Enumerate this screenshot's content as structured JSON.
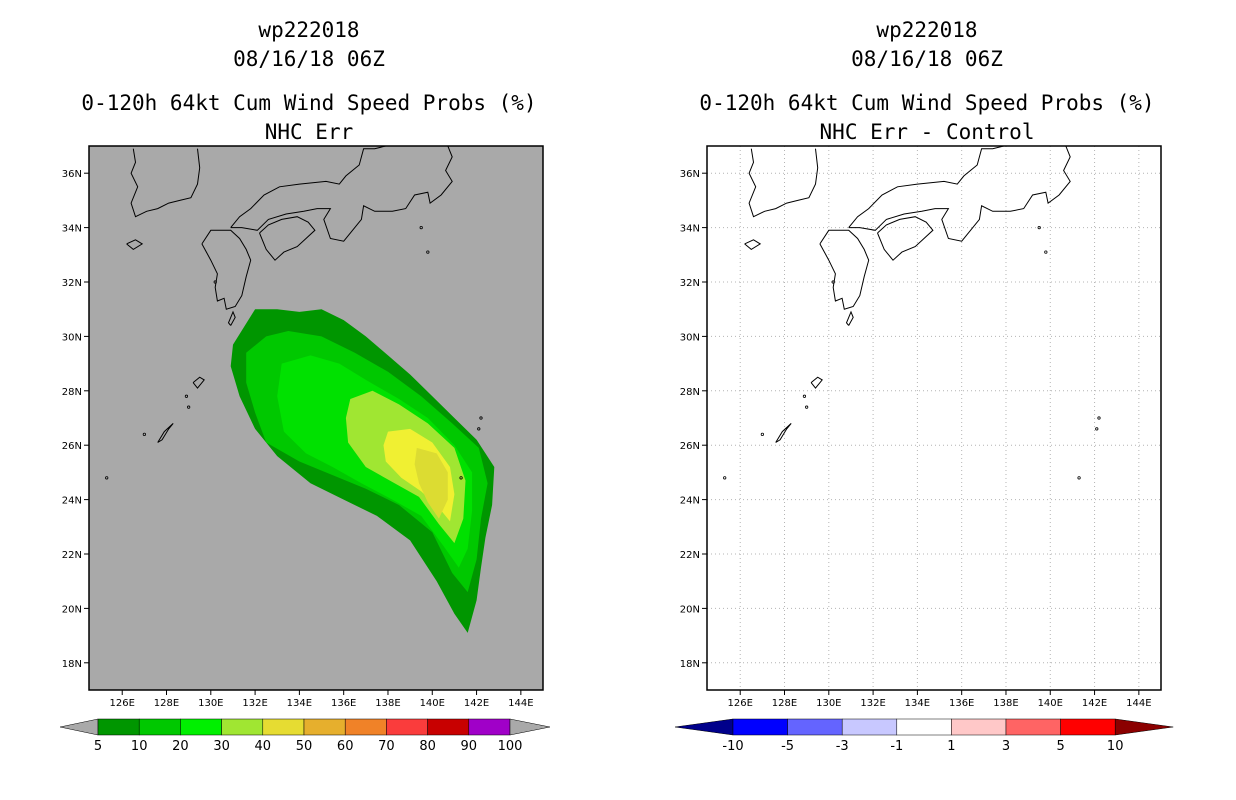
{
  "left_panel": {
    "title_storm": "wp222018",
    "title_date": "08/16/18 06Z",
    "title_product": "0-120h 64kt Cum Wind Speed Probs (%)",
    "title_subtitle": "NHC Err",
    "background_color": "#a9a9a9",
    "colorbar": {
      "labels": [
        "5",
        "10",
        "20",
        "30",
        "40",
        "50",
        "60",
        "70",
        "80",
        "90",
        "100"
      ],
      "colors": [
        "#009600",
        "#00c800",
        "#00f000",
        "#a0e632",
        "#e6dc32",
        "#e6af2d",
        "#f08228",
        "#fa3c3c",
        "#c80000",
        "#a000c8"
      ]
    }
  },
  "right_panel": {
    "title_storm": "wp222018",
    "title_date": "08/16/18 06Z",
    "title_product": "0-120h 64kt Cum Wind Speed Probs (%)",
    "title_subtitle": "NHC Err - Control",
    "background_color": "#ffffff",
    "colorbar": {
      "labels": [
        "-10",
        "-5",
        "-3",
        "-1",
        "1",
        "3",
        "5",
        "10"
      ],
      "colors": [
        "#00008b",
        "#0000ff",
        "#6464ff",
        "#c8c8ff",
        "#ffffff",
        "#ffc8c8",
        "#ff6464",
        "#ff0000",
        "#8b0000"
      ]
    }
  },
  "axes": {
    "lat_labels": [
      "36N",
      "34N",
      "32N",
      "30N",
      "28N",
      "26N",
      "24N",
      "22N",
      "20N",
      "18N"
    ],
    "lon_labels": [
      "126E",
      "128E",
      "130E",
      "132E",
      "134E",
      "136E",
      "138E",
      "140E",
      "142E",
      "144E"
    ]
  },
  "probability_contours": {
    "levels_percent": [
      5,
      10,
      20,
      30,
      40
    ],
    "fill_colors": [
      "#009600",
      "#00c800",
      "#a0e632",
      "#f0f032",
      "#dcdc32"
    ]
  }
}
